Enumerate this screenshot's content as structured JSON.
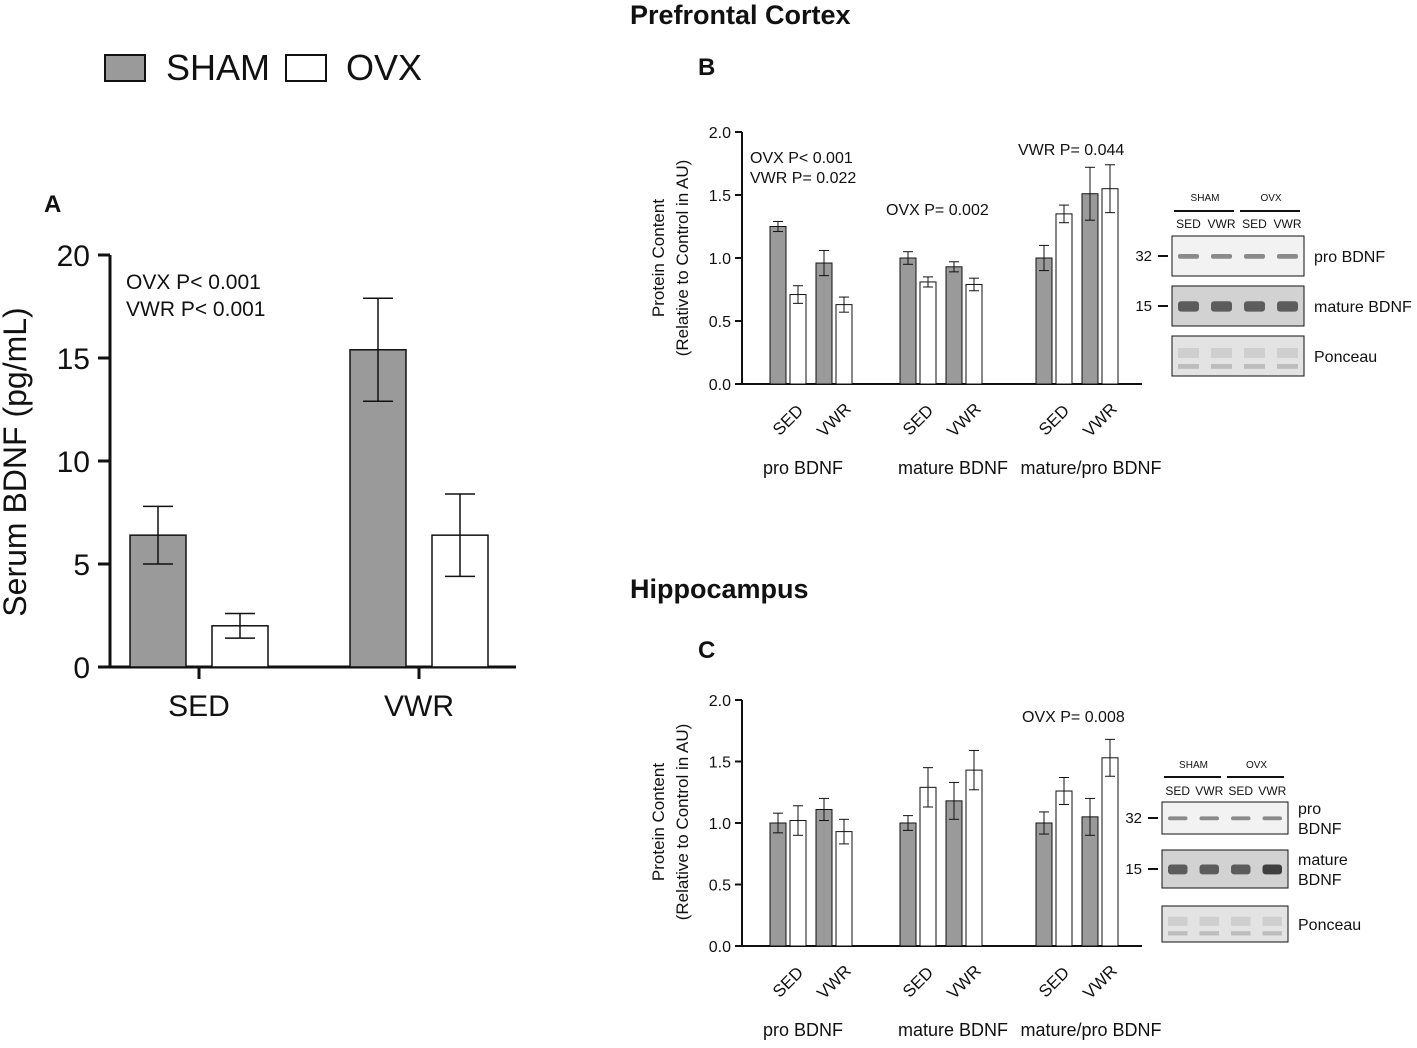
{
  "figure": {
    "legend": [
      {
        "label": "SHAM",
        "color": "#9a9a9a"
      },
      {
        "label": "OVX",
        "color": "#ffffff"
      }
    ],
    "section_titles": {
      "prefrontal": "Prefrontal Cortex",
      "hippocampus": "Hippocampus"
    },
    "panel_letters": {
      "a": "A",
      "b": "B",
      "c": "C"
    },
    "colors": {
      "sham": "#9a9a9a",
      "ovx": "#ffffff",
      "stroke": "#111111"
    }
  },
  "chart_data": [
    {
      "id": "A",
      "type": "bar",
      "title": "",
      "ylabel": "Serum BDNF (pg/mL)",
      "ylim": [
        0,
        20
      ],
      "yticks": [
        "0",
        "5",
        "10",
        "15",
        "20"
      ],
      "categories": [
        "SED",
        "VWR"
      ],
      "series": [
        {
          "name": "SHAM",
          "values": [
            6.4,
            15.4
          ],
          "errors": [
            1.4,
            2.5
          ]
        },
        {
          "name": "OVX",
          "values": [
            2.0,
            6.4
          ],
          "errors": [
            0.6,
            2.0
          ]
        }
      ],
      "annotations": [
        "OVX P< 0.001",
        "VWR P< 0.001"
      ]
    },
    {
      "id": "B",
      "type": "bar",
      "ylabel_lines": [
        "Protein Content",
        "(Relative to Control in AU)"
      ],
      "ylim": [
        0,
        2.0
      ],
      "yticks": [
        "0.0",
        "0.5",
        "1.0",
        "1.5",
        "2.0"
      ],
      "groups": [
        {
          "label": "pro BDNF",
          "categories": [
            "SED",
            "VWR"
          ],
          "sham": [
            1.25,
            0.96
          ],
          "sham_err": [
            0.04,
            0.1
          ],
          "ovx": [
            0.71,
            0.63
          ],
          "ovx_err": [
            0.07,
            0.06
          ]
        },
        {
          "label": "mature BDNF",
          "categories": [
            "SED",
            "VWR"
          ],
          "sham": [
            1.0,
            0.93
          ],
          "sham_err": [
            0.05,
            0.04
          ],
          "ovx": [
            0.81,
            0.79
          ],
          "ovx_err": [
            0.04,
            0.05
          ]
        },
        {
          "label": "mature/pro BDNF",
          "categories": [
            "SED",
            "VWR"
          ],
          "sham": [
            1.0,
            1.51
          ],
          "sham_err": [
            0.1,
            0.21
          ],
          "ovx": [
            1.35,
            1.55
          ],
          "ovx_err": [
            0.07,
            0.19
          ]
        }
      ],
      "annotations": {
        "pro": [
          "OVX P< 0.001",
          "VWR P= 0.022"
        ],
        "mature": "OVX P= 0.002",
        "ratio": "VWR P= 0.044"
      },
      "blot": {
        "groups": [
          "SHAM",
          "OVX"
        ],
        "lanes": [
          "SED",
          "VWR",
          "SED",
          "VWR"
        ],
        "rows": [
          {
            "marker": "32",
            "label_lines": [
              "pro BDNF"
            ]
          },
          {
            "marker": "15",
            "label_lines": [
              "mature BDNF"
            ]
          },
          {
            "marker": "",
            "label_lines": [
              "Ponceau"
            ]
          }
        ]
      }
    },
    {
      "id": "C",
      "type": "bar",
      "ylabel_lines": [
        "Protein Content",
        "(Relative to Control in AU)"
      ],
      "ylim": [
        0,
        2.0
      ],
      "yticks": [
        "0.0",
        "0.5",
        "1.0",
        "1.5",
        "2.0"
      ],
      "groups": [
        {
          "label": "pro BDNF",
          "categories": [
            "SED",
            "VWR"
          ],
          "sham": [
            1.0,
            1.11
          ],
          "sham_err": [
            0.08,
            0.09
          ],
          "ovx": [
            1.02,
            0.93
          ],
          "ovx_err": [
            0.12,
            0.1
          ]
        },
        {
          "label": "mature BDNF",
          "categories": [
            "SED",
            "VWR"
          ],
          "sham": [
            1.0,
            1.18
          ],
          "sham_err": [
            0.06,
            0.15
          ],
          "ovx": [
            1.29,
            1.43
          ],
          "ovx_err": [
            0.16,
            0.16
          ]
        },
        {
          "label": "mature/pro BDNF",
          "categories": [
            "SED",
            "VWR"
          ],
          "sham": [
            1.0,
            1.05
          ],
          "sham_err": [
            0.09,
            0.15
          ],
          "ovx": [
            1.26,
            1.53
          ],
          "ovx_err": [
            0.11,
            0.15
          ]
        }
      ],
      "annotations": {
        "ratio": "OVX P= 0.008"
      },
      "blot": {
        "groups": [
          "SHAM",
          "OVX"
        ],
        "lanes": [
          "SED",
          "VWR",
          "SED",
          "VWR"
        ],
        "rows": [
          {
            "marker": "32",
            "label_lines": [
              "pro",
              "BDNF"
            ]
          },
          {
            "marker": "15",
            "label_lines": [
              "mature",
              "BDNF"
            ]
          },
          {
            "marker": "",
            "label_lines": [
              "Ponceau"
            ]
          }
        ]
      }
    }
  ]
}
